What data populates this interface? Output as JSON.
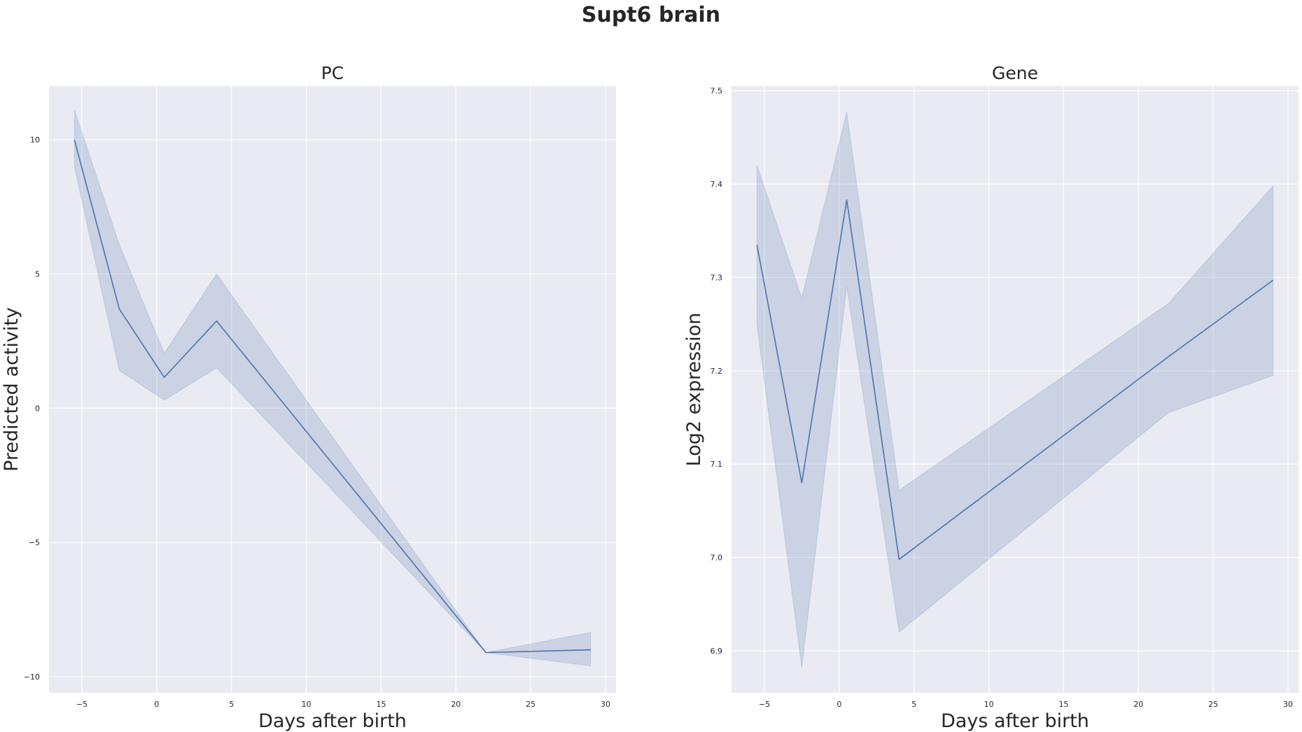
{
  "figure": {
    "suptitle": "Supt6 brain"
  },
  "style": {
    "axes_bg": "#eaeaf2",
    "grid": "#ffffff",
    "line": "#4c72b0",
    "band": "#4c72b0"
  },
  "chart_data": [
    {
      "type": "line",
      "title": "PC",
      "xlabel": "Days after birth",
      "ylabel": "Predicted activity",
      "xlim": [
        -7.2,
        30.7
      ],
      "ylim": [
        -10.6,
        12.0
      ],
      "xticks": [
        -5,
        0,
        5,
        10,
        15,
        20,
        25,
        30
      ],
      "xticklabels": [
        "−5",
        "0",
        "5",
        "10",
        "15",
        "20",
        "25",
        "30"
      ],
      "yticks": [
        -10,
        -5,
        0,
        5,
        10
      ],
      "yticklabels": [
        "−10",
        "−5",
        "0",
        "5",
        "10"
      ],
      "grid": true,
      "series": [
        {
          "x": [
            -5.5,
            -2.5,
            0.5,
            4,
            22,
            29
          ],
          "y": [
            10.0,
            3.7,
            1.15,
            3.25,
            -9.1,
            -9.0
          ],
          "ci_low": [
            9.0,
            1.4,
            0.3,
            1.5,
            -9.1,
            -9.6
          ],
          "ci_high": [
            11.1,
            6.1,
            2.05,
            5.0,
            -9.1,
            -8.35
          ]
        }
      ]
    },
    {
      "type": "line",
      "title": "Gene",
      "xlabel": "Days after birth",
      "ylabel": "Log2 expression",
      "xlim": [
        -7.2,
        30.7
      ],
      "ylim": [
        6.855,
        7.505
      ],
      "xticks": [
        -5,
        0,
        5,
        10,
        15,
        20,
        25,
        30
      ],
      "xticklabels": [
        "−5",
        "0",
        "5",
        "10",
        "15",
        "20",
        "25",
        "30"
      ],
      "yticks": [
        6.9,
        7.0,
        7.1,
        7.2,
        7.3,
        7.4,
        7.5
      ],
      "yticklabels": [
        "6.9",
        "7.0",
        "7.1",
        "7.2",
        "7.3",
        "7.4",
        "7.5"
      ],
      "grid": true,
      "series": [
        {
          "x": [
            -5.5,
            -2.5,
            0.5,
            4,
            22,
            29
          ],
          "y": [
            7.335,
            7.08,
            7.383,
            6.998,
            7.215,
            7.297
          ],
          "ci_low": [
            7.25,
            6.882,
            7.29,
            6.92,
            7.155,
            7.195
          ],
          "ci_high": [
            7.42,
            7.278,
            7.477,
            7.072,
            7.272,
            7.398
          ]
        }
      ]
    }
  ]
}
